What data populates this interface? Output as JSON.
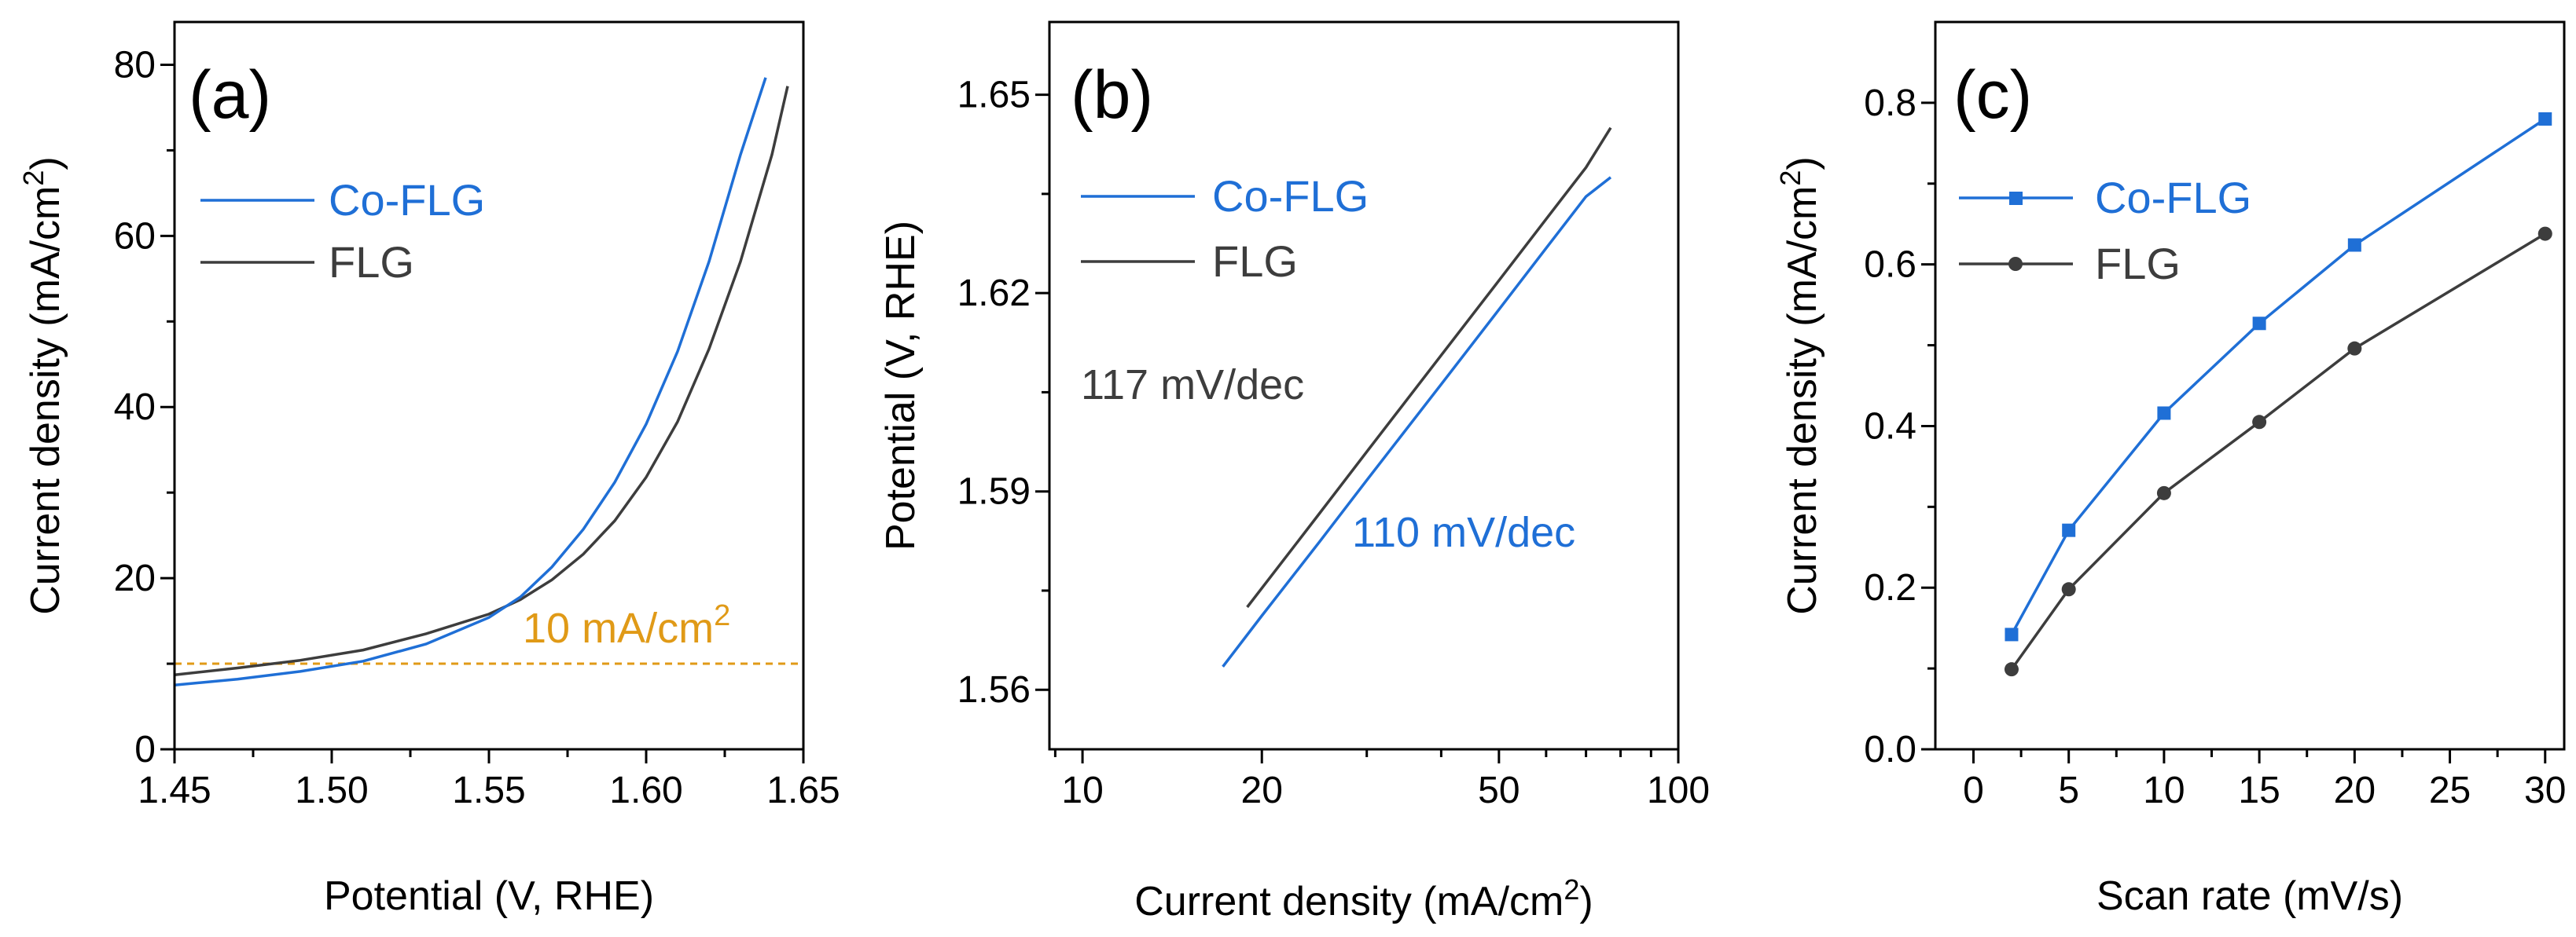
{
  "colors": {
    "co_flg": "#1f6fd6",
    "flg": "#3d3d3d",
    "ref": "#e09a17",
    "axis": "#000000"
  },
  "chart_data": [
    {
      "panel": "(a)",
      "type": "line",
      "xlabel": "Potential (V, RHE)",
      "ylabel_main": "Current density (mA/cm",
      "ylabel_sup": "2",
      "ylabel_close": ")",
      "xlim": [
        1.45,
        1.65
      ],
      "ylim": [
        0,
        85
      ],
      "xticks": [
        "1.45",
        "1.50",
        "1.55",
        "1.60",
        "1.65"
      ],
      "yticks": [
        "0",
        "20",
        "40",
        "60",
        "80"
      ],
      "legend": [
        "Co-FLG",
        "FLG"
      ],
      "series": [
        {
          "name": "Co-FLG",
          "x": [
            1.45,
            1.47,
            1.49,
            1.51,
            1.53,
            1.55,
            1.56,
            1.57,
            1.58,
            1.59,
            1.6,
            1.61,
            1.62,
            1.63,
            1.638
          ],
          "y": [
            7.5,
            8.2,
            9.1,
            10.3,
            12.3,
            15.4,
            17.8,
            21.3,
            25.7,
            31.2,
            38.0,
            46.5,
            57.0,
            69.5,
            78.5
          ]
        },
        {
          "name": "FLG",
          "x": [
            1.45,
            1.47,
            1.49,
            1.51,
            1.53,
            1.55,
            1.56,
            1.57,
            1.58,
            1.59,
            1.6,
            1.61,
            1.62,
            1.63,
            1.64,
            1.645
          ],
          "y": [
            8.7,
            9.5,
            10.4,
            11.6,
            13.5,
            15.8,
            17.5,
            19.8,
            22.8,
            26.7,
            31.8,
            38.3,
            46.8,
            57.0,
            69.5,
            77.5
          ]
        }
      ],
      "reference": {
        "y": 10,
        "label_main": "10 mA/cm",
        "label_sup": "2"
      }
    },
    {
      "panel": "(b)",
      "type": "line",
      "xscale": "log",
      "xlabel_main": "Current density (mA/cm",
      "xlabel_sup": "2",
      "xlabel_close": ")",
      "ylabel": "Potential (V, RHE)",
      "xlim": [
        8.8,
        100
      ],
      "ylim": [
        1.551,
        1.661
      ],
      "xticks": [
        "10",
        "20",
        "50",
        "100"
      ],
      "yticks": [
        "1.56",
        "1.59",
        "1.62",
        "1.65"
      ],
      "legend": [
        "Co-FLG",
        "FLG"
      ],
      "series": [
        {
          "name": "Co-FLG",
          "x": [
            17.2,
            20,
            25,
            30,
            40,
            50,
            60,
            70,
            77
          ],
          "y": [
            1.5635,
            1.5712,
            1.5824,
            1.5917,
            1.6062,
            1.6175,
            1.6268,
            1.6346,
            1.6375
          ]
        },
        {
          "name": "FLG",
          "x": [
            18.9,
            22,
            25,
            30,
            40,
            50,
            60,
            70,
            77
          ],
          "y": [
            1.5725,
            1.5802,
            1.5867,
            1.596,
            1.6106,
            1.6219,
            1.6312,
            1.639,
            1.645
          ]
        }
      ],
      "annotations": [
        {
          "text": "117 mV/dec",
          "series": "FLG"
        },
        {
          "text": "110 mV/dec",
          "series": "Co-FLG"
        }
      ]
    },
    {
      "panel": "(c)",
      "type": "line",
      "markers": true,
      "xlabel": "Scan rate (mV/s)",
      "ylabel_main": "Current density (mA/cm",
      "ylabel_sup": "2",
      "ylabel_close": ")",
      "xlim": [
        -2,
        31
      ],
      "ylim": [
        0,
        0.9
      ],
      "xticks": [
        "0",
        "5",
        "10",
        "15",
        "20",
        "25",
        "30"
      ],
      "yticks": [
        "0.0",
        "0.2",
        "0.4",
        "0.6",
        "0.8"
      ],
      "legend": [
        "Co-FLG",
        "FLG"
      ],
      "series": [
        {
          "name": "Co-FLG",
          "marker": "square",
          "x": [
            2,
            5,
            10,
            15,
            20,
            30
          ],
          "y": [
            0.142,
            0.271,
            0.416,
            0.527,
            0.624,
            0.78
          ]
        },
        {
          "name": "FLG",
          "marker": "circle",
          "x": [
            2,
            5,
            10,
            15,
            20,
            30
          ],
          "y": [
            0.099,
            0.198,
            0.317,
            0.405,
            0.496,
            0.638
          ]
        }
      ]
    }
  ]
}
